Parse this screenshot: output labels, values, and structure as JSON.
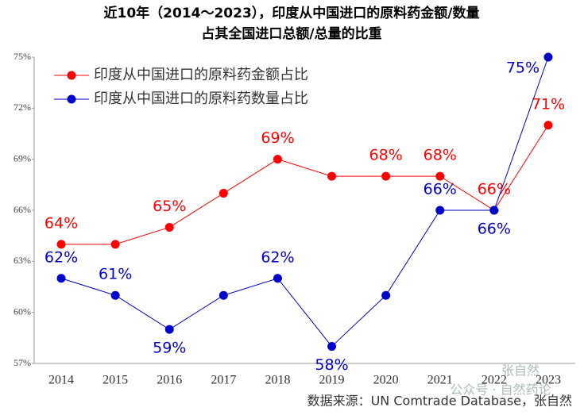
{
  "chart_data": {
    "type": "line",
    "title": "近10年（2014～2023），印度从中国进口的原料药金额/数量",
    "subtitle": "占其全国进口总额/总量的比重",
    "categories": [
      "2014",
      "2015",
      "2016",
      "2017",
      "2018",
      "2019",
      "2020",
      "2021",
      "2022",
      "2023"
    ],
    "series": [
      {
        "name": "印度从中国进口的原料药金额占比",
        "color": "#ff0000",
        "values": [
          64,
          64,
          65,
          67,
          69,
          68,
          68,
          68,
          66,
          71
        ],
        "value_labels": [
          "64%",
          null,
          "65%",
          null,
          "69%",
          null,
          "68%",
          "68%",
          "66%",
          "71%"
        ]
      },
      {
        "name": "印度从中国进口的原料药数量占比",
        "color": "#0000cc",
        "values": [
          62,
          61,
          59,
          61,
          62,
          58,
          61,
          66,
          66,
          75
        ],
        "value_labels": [
          "62%",
          "61%",
          "59%",
          null,
          "62%",
          "58%",
          null,
          "66%",
          "66%",
          "75%"
        ]
      }
    ],
    "ylim": [
      57,
      75
    ],
    "yticks": [
      {
        "value": 57,
        "label": "57%"
      },
      {
        "value": 60,
        "label": "60%"
      },
      {
        "value": 63,
        "label": "63%"
      },
      {
        "value": 66,
        "label": "66%"
      },
      {
        "value": 69,
        "label": "69%"
      },
      {
        "value": 72,
        "label": "72%"
      },
      {
        "value": 75,
        "label": "75%"
      }
    ],
    "source": "数据来源：UN Comtrade Database，张自然",
    "watermark": [
      "张自然",
      "公众号 · 自然药论"
    ]
  }
}
